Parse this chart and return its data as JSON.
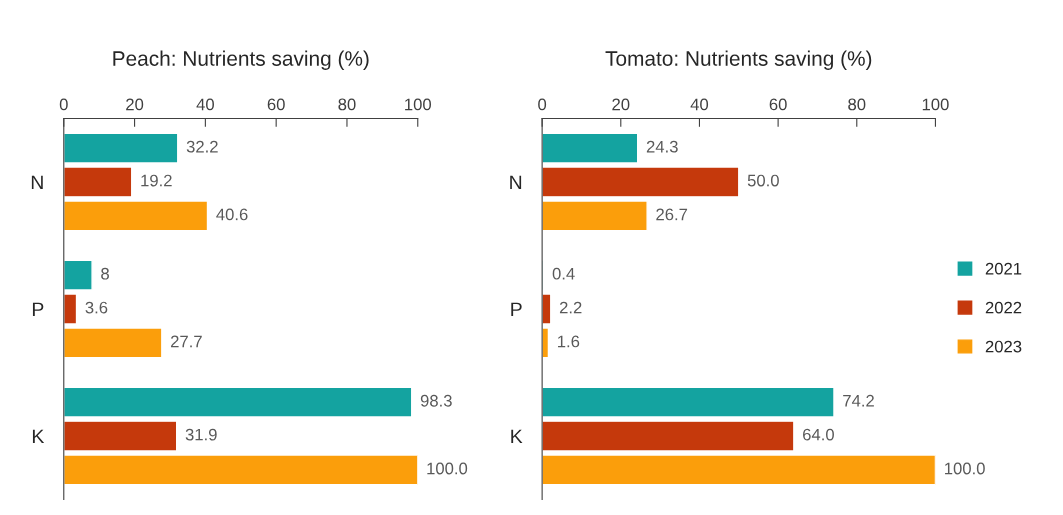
{
  "chart_data": [
    {
      "type": "bar",
      "orientation": "horizontal",
      "title": "Peach: Nutrients saving (%)",
      "categories": [
        "N",
        "P",
        "K"
      ],
      "xlim": [
        0,
        100
      ],
      "xticks": [
        0,
        20,
        40,
        60,
        80,
        100
      ],
      "grid": false,
      "legend": false,
      "series": [
        {
          "color": "#14a3a0",
          "values": [
            32.2,
            8,
            98.3
          ],
          "value_labels": [
            "32.2",
            "8",
            "98.3"
          ]
        },
        {
          "color": "#c5390c",
          "values": [
            19.2,
            3.6,
            31.9
          ],
          "value_labels": [
            "19.2",
            "3.6",
            "31.9"
          ]
        },
        {
          "color": "#fb9e0b",
          "values": [
            40.6,
            27.7,
            100.0
          ],
          "value_labels": [
            "40.6",
            "27.7",
            "100.0"
          ]
        }
      ]
    },
    {
      "type": "bar",
      "orientation": "horizontal",
      "title": "Tomato: Nutrients saving (%)",
      "categories": [
        "N",
        "P",
        "K"
      ],
      "xlim": [
        0,
        100
      ],
      "xticks": [
        0,
        20,
        40,
        60,
        80,
        100
      ],
      "grid": false,
      "legend": "right",
      "series": [
        {
          "name": "2021",
          "color": "#14a3a0",
          "values": [
            24.3,
            0.4,
            74.2
          ],
          "value_labels": [
            "24.3",
            "0.4",
            "74.2"
          ]
        },
        {
          "name": "2022",
          "color": "#c5390c",
          "values": [
            50.0,
            2.2,
            64.0
          ],
          "value_labels": [
            "50.0",
            "2.2",
            "64.0"
          ]
        },
        {
          "name": "2023",
          "color": "#fb9e0b",
          "values": [
            26.7,
            1.6,
            100.0
          ],
          "value_labels": [
            "26.7",
            "1.6",
            "100.0"
          ]
        }
      ]
    }
  ]
}
